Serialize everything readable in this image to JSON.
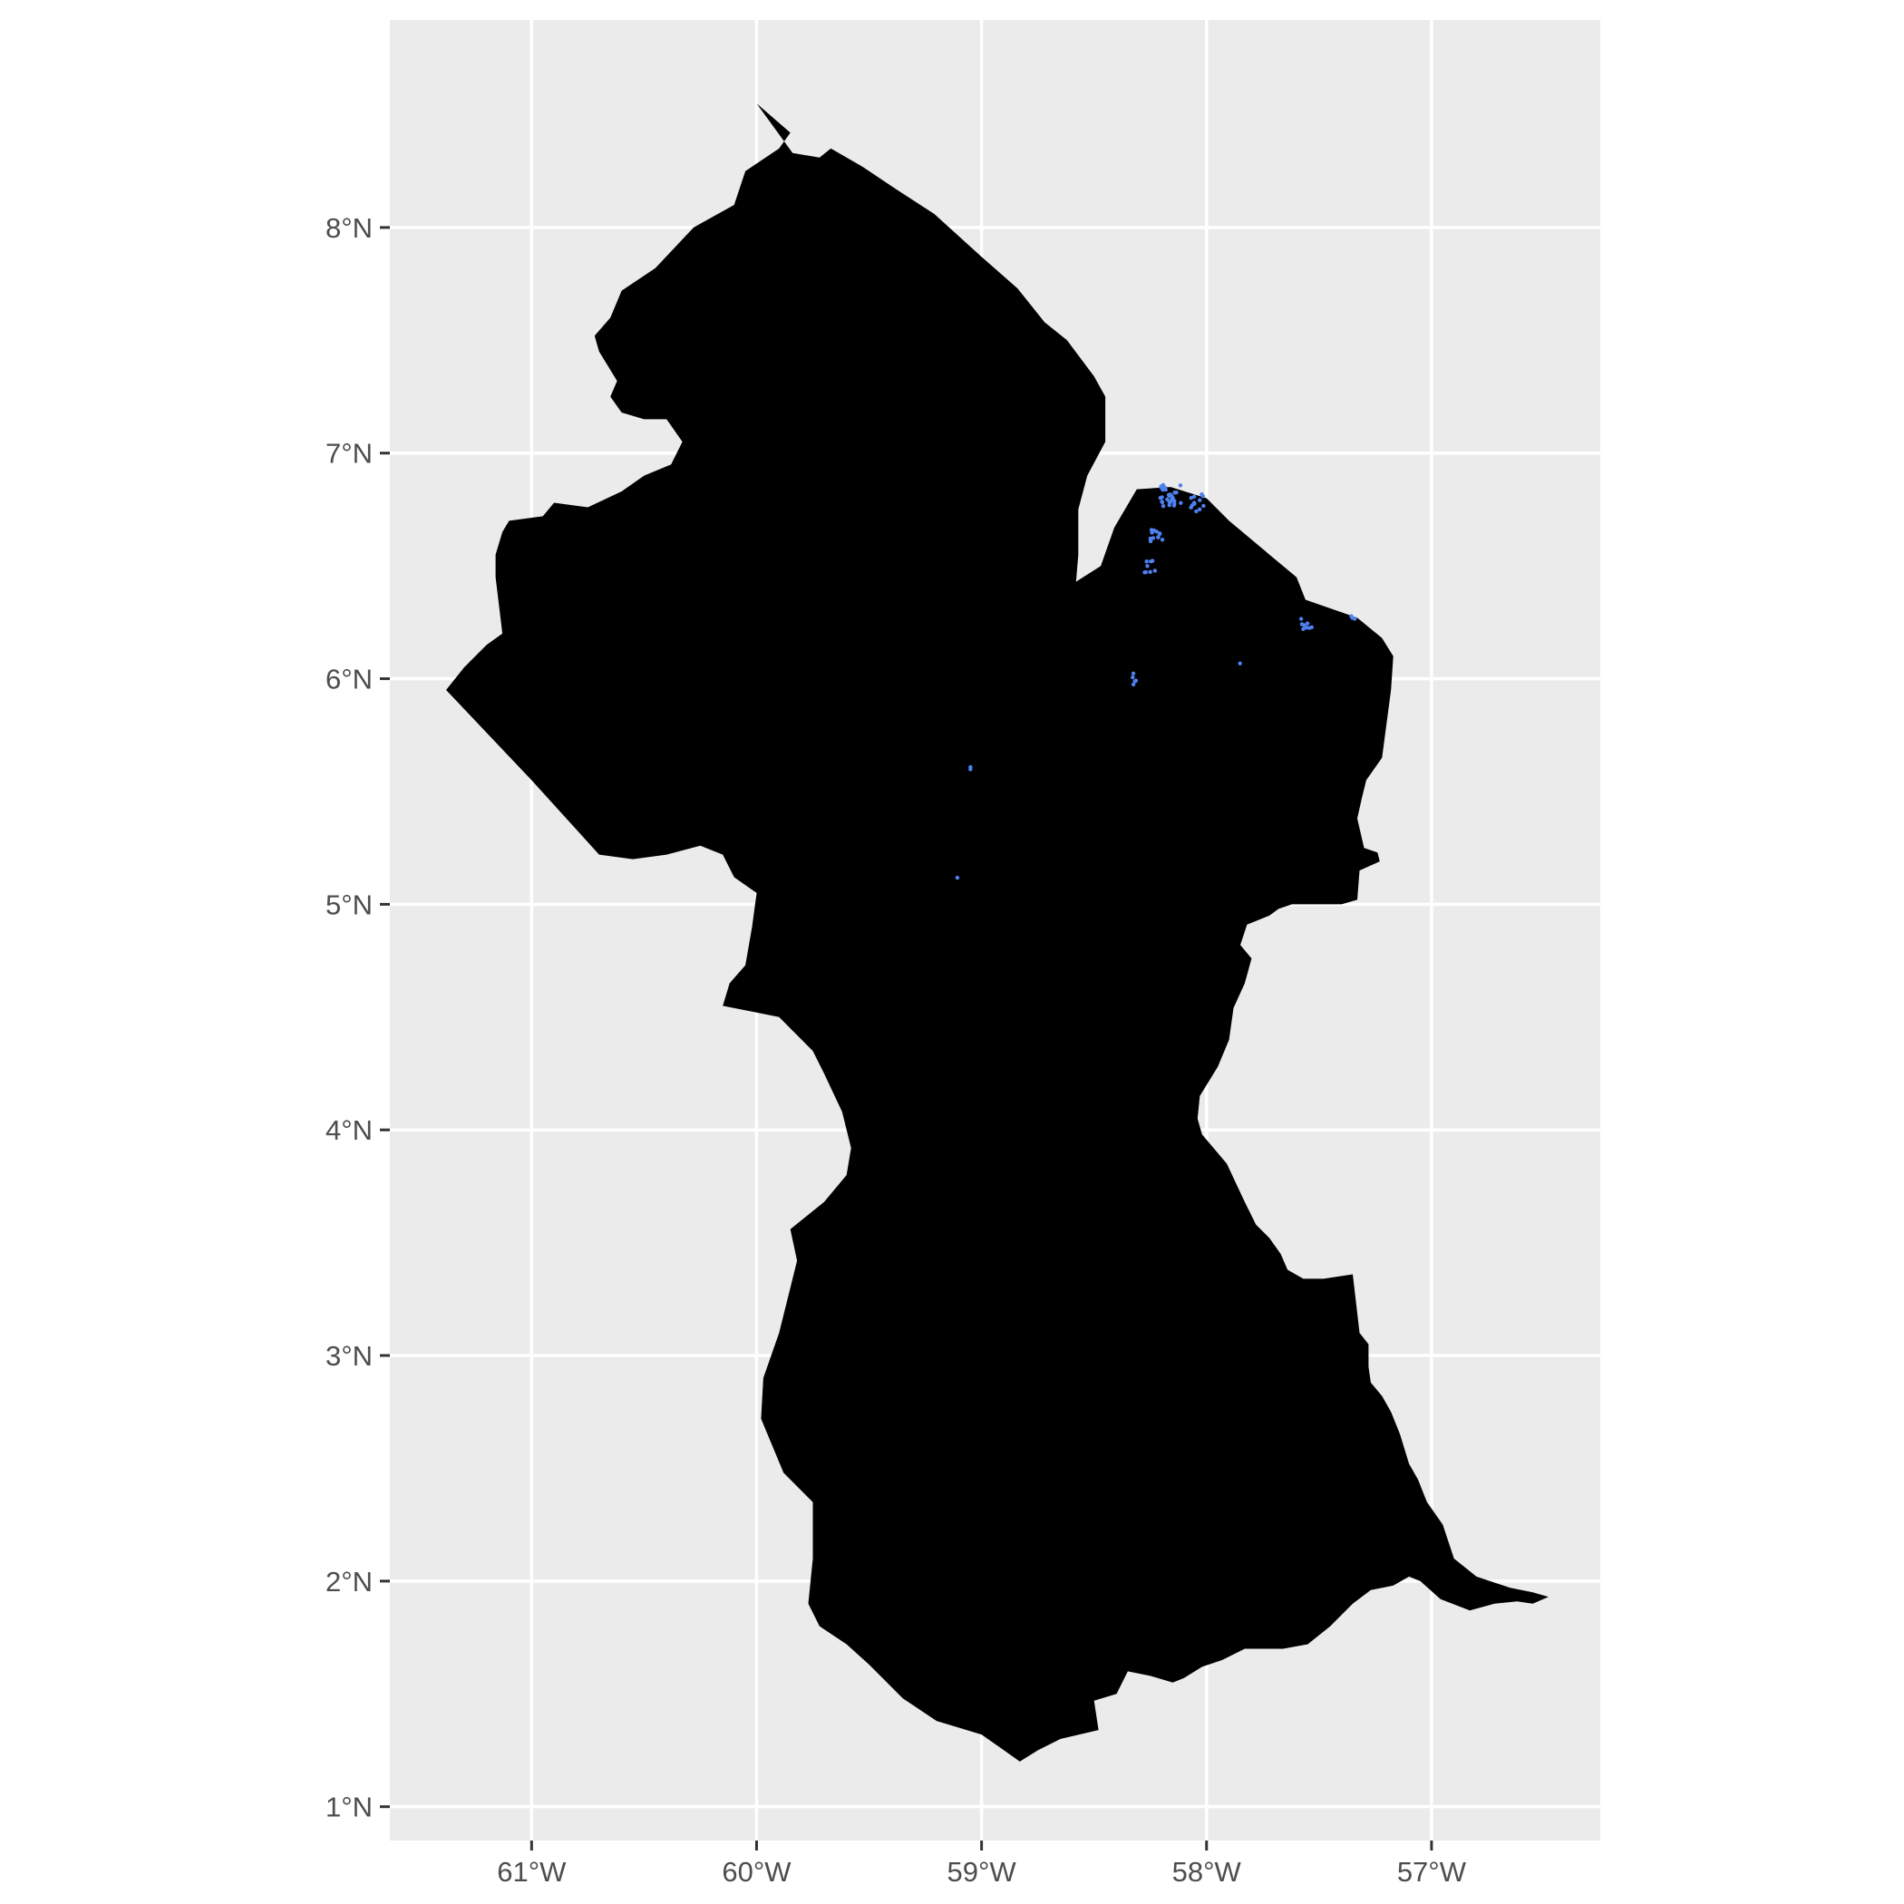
{
  "map": {
    "type": "choropleth-with-points",
    "x_axis": {
      "range": [
        -61.63,
        -56.25
      ],
      "ticks": [
        -61,
        -60,
        -59,
        -58,
        -57
      ],
      "tick_labels": [
        "61°W",
        "60°W",
        "59°W",
        "58°W",
        "57°W"
      ]
    },
    "y_axis": {
      "range": [
        0.85,
        8.92
      ],
      "ticks": [
        1,
        2,
        3,
        4,
        5,
        6,
        7,
        8
      ],
      "tick_labels": [
        "1°N",
        "2°N",
        "3°N",
        "4°N",
        "5°N",
        "6°N",
        "7°N",
        "8°N"
      ]
    },
    "grid": true,
    "colors": {
      "panel_background": "#ebebeb",
      "grid_line": "#ffffff",
      "land_fill": "#000000",
      "points": "#4f81f0",
      "tick_label": "#4d4d4d",
      "tick_mark": "#333333"
    },
    "country_outline": [
      [
        -60.0,
        8.55
      ],
      [
        -59.84,
        8.33
      ],
      [
        -59.72,
        8.31
      ],
      [
        -59.67,
        8.35
      ],
      [
        -59.53,
        8.27
      ],
      [
        -59.38,
        8.17
      ],
      [
        -59.21,
        8.06
      ],
      [
        -59.0,
        7.87
      ],
      [
        -58.84,
        7.73
      ],
      [
        -58.72,
        7.58
      ],
      [
        -58.62,
        7.5
      ],
      [
        -58.5,
        7.34
      ],
      [
        -58.45,
        7.25
      ],
      [
        -58.45,
        7.05
      ],
      [
        -58.53,
        6.9
      ],
      [
        -58.57,
        6.75
      ],
      [
        -58.57,
        6.55
      ],
      [
        -58.58,
        6.43
      ],
      [
        -58.47,
        6.5
      ],
      [
        -58.41,
        6.67
      ],
      [
        -58.31,
        6.84
      ],
      [
        -58.16,
        6.85
      ],
      [
        -58.0,
        6.8
      ],
      [
        -57.9,
        6.7
      ],
      [
        -57.78,
        6.6
      ],
      [
        -57.6,
        6.45
      ],
      [
        -57.56,
        6.35
      ],
      [
        -57.33,
        6.27
      ],
      [
        -57.22,
        6.18
      ],
      [
        -57.17,
        6.1
      ],
      [
        -57.18,
        5.95
      ],
      [
        -57.22,
        5.65
      ],
      [
        -57.29,
        5.55
      ],
      [
        -57.31,
        5.47
      ],
      [
        -57.33,
        5.38
      ],
      [
        -57.3,
        5.25
      ],
      [
        -57.24,
        5.23
      ],
      [
        -57.23,
        5.19
      ],
      [
        -57.32,
        5.15
      ],
      [
        -57.33,
        5.02
      ],
      [
        -57.4,
        5.0
      ],
      [
        -57.62,
        5.0
      ],
      [
        -57.68,
        4.98
      ],
      [
        -57.72,
        4.95
      ],
      [
        -57.82,
        4.91
      ],
      [
        -57.85,
        4.82
      ],
      [
        -57.8,
        4.76
      ],
      [
        -57.83,
        4.65
      ],
      [
        -57.88,
        4.54
      ],
      [
        -57.9,
        4.4
      ],
      [
        -57.95,
        4.28
      ],
      [
        -58.03,
        4.15
      ],
      [
        -58.04,
        4.05
      ],
      [
        -58.02,
        3.98
      ],
      [
        -57.91,
        3.85
      ],
      [
        -57.83,
        3.68
      ],
      [
        -57.78,
        3.58
      ],
      [
        -57.72,
        3.52
      ],
      [
        -57.67,
        3.45
      ],
      [
        -57.64,
        3.38
      ],
      [
        -57.57,
        3.34
      ],
      [
        -57.48,
        3.34
      ],
      [
        -57.35,
        3.36
      ],
      [
        -57.32,
        3.1
      ],
      [
        -57.28,
        3.05
      ],
      [
        -57.28,
        2.95
      ],
      [
        -57.27,
        2.88
      ],
      [
        -57.22,
        2.82
      ],
      [
        -57.18,
        2.75
      ],
      [
        -57.14,
        2.65
      ],
      [
        -57.1,
        2.52
      ],
      [
        -57.06,
        2.45
      ],
      [
        -57.02,
        2.35
      ],
      [
        -56.95,
        2.25
      ],
      [
        -56.9,
        2.1
      ],
      [
        -56.8,
        2.02
      ],
      [
        -56.65,
        1.97
      ],
      [
        -56.55,
        1.95
      ],
      [
        -56.48,
        1.93
      ],
      [
        -56.55,
        1.9
      ],
      [
        -56.62,
        1.91
      ],
      [
        -56.72,
        1.9
      ],
      [
        -56.83,
        1.87
      ],
      [
        -56.96,
        1.92
      ],
      [
        -57.05,
        2.0
      ],
      [
        -57.1,
        2.02
      ],
      [
        -57.17,
        1.98
      ],
      [
        -57.27,
        1.96
      ],
      [
        -57.35,
        1.9
      ],
      [
        -57.45,
        1.8
      ],
      [
        -57.55,
        1.72
      ],
      [
        -57.66,
        1.7
      ],
      [
        -57.83,
        1.7
      ],
      [
        -57.93,
        1.65
      ],
      [
        -58.02,
        1.62
      ],
      [
        -58.1,
        1.57
      ],
      [
        -58.15,
        1.55
      ],
      [
        -58.25,
        1.58
      ],
      [
        -58.35,
        1.6
      ],
      [
        -58.4,
        1.5
      ],
      [
        -58.5,
        1.47
      ],
      [
        -58.48,
        1.34
      ],
      [
        -58.65,
        1.3
      ],
      [
        -58.75,
        1.25
      ],
      [
        -58.83,
        1.2
      ],
      [
        -58.9,
        1.25
      ],
      [
        -59.0,
        1.32
      ],
      [
        -59.2,
        1.38
      ],
      [
        -59.35,
        1.48
      ],
      [
        -59.5,
        1.63
      ],
      [
        -59.6,
        1.72
      ],
      [
        -59.72,
        1.8
      ],
      [
        -59.77,
        1.9
      ],
      [
        -59.75,
        2.1
      ],
      [
        -59.75,
        2.35
      ],
      [
        -59.88,
        2.48
      ],
      [
        -59.98,
        2.72
      ],
      [
        -59.97,
        2.9
      ],
      [
        -59.9,
        3.1
      ],
      [
        -59.85,
        3.3
      ],
      [
        -59.82,
        3.42
      ],
      [
        -59.85,
        3.56
      ],
      [
        -59.7,
        3.68
      ],
      [
        -59.6,
        3.8
      ],
      [
        -59.58,
        3.92
      ],
      [
        -59.62,
        4.08
      ],
      [
        -59.7,
        4.25
      ],
      [
        -59.75,
        4.35
      ],
      [
        -59.85,
        4.45
      ],
      [
        -59.9,
        4.5
      ],
      [
        -60.0,
        4.52
      ],
      [
        -60.15,
        4.55
      ],
      [
        -60.12,
        4.65
      ],
      [
        -60.05,
        4.73
      ],
      [
        -60.02,
        4.9
      ],
      [
        -60.0,
        5.05
      ],
      [
        -60.1,
        5.12
      ],
      [
        -60.15,
        5.22
      ],
      [
        -60.25,
        5.26
      ],
      [
        -60.4,
        5.22
      ],
      [
        -60.55,
        5.2
      ],
      [
        -60.7,
        5.22
      ],
      [
        -61.0,
        5.55
      ],
      [
        -61.38,
        5.95
      ],
      [
        -61.3,
        6.05
      ],
      [
        -61.2,
        6.15
      ],
      [
        -61.13,
        6.2
      ],
      [
        -61.16,
        6.45
      ],
      [
        -61.16,
        6.55
      ],
      [
        -61.13,
        6.65
      ],
      [
        -61.1,
        6.7
      ],
      [
        -60.95,
        6.72
      ],
      [
        -60.9,
        6.78
      ],
      [
        -60.75,
        6.76
      ],
      [
        -60.6,
        6.83
      ],
      [
        -60.5,
        6.9
      ],
      [
        -60.38,
        6.95
      ],
      [
        -60.33,
        7.05
      ],
      [
        -60.4,
        7.15
      ],
      [
        -60.5,
        7.15
      ],
      [
        -60.6,
        7.18
      ],
      [
        -60.65,
        7.25
      ],
      [
        -60.62,
        7.32
      ],
      [
        -60.7,
        7.45
      ],
      [
        -60.72,
        7.52
      ],
      [
        -60.65,
        7.6
      ],
      [
        -60.6,
        7.72
      ],
      [
        -60.45,
        7.82
      ],
      [
        -60.28,
        8.0
      ],
      [
        -60.1,
        8.1
      ],
      [
        -60.05,
        8.25
      ],
      [
        -59.9,
        8.35
      ],
      [
        -59.85,
        8.42
      ]
    ],
    "point_groups": [
      {
        "lon": -58.16,
        "lat": 6.81,
        "count": 30,
        "spread": 0.05
      },
      {
        "lon": -58.05,
        "lat": 6.78,
        "count": 12,
        "spread": 0.04
      },
      {
        "lon": -58.22,
        "lat": 6.63,
        "count": 12,
        "spread": 0.03
      },
      {
        "lon": -58.25,
        "lat": 6.5,
        "count": 8,
        "spread": 0.03
      },
      {
        "lon": -57.55,
        "lat": 6.25,
        "count": 8,
        "spread": 0.03
      },
      {
        "lon": -57.35,
        "lat": 6.26,
        "count": 3,
        "spread": 0.02
      },
      {
        "lon": -58.3,
        "lat": 6.0,
        "count": 5,
        "spread": 0.03
      },
      {
        "lon": -57.85,
        "lat": 6.07,
        "count": 1,
        "spread": 0.01
      },
      {
        "lon": -59.05,
        "lat": 5.6,
        "count": 2,
        "spread": 0.01
      },
      {
        "lon": -59.1,
        "lat": 5.11,
        "count": 1,
        "spread": 0.01
      }
    ]
  }
}
